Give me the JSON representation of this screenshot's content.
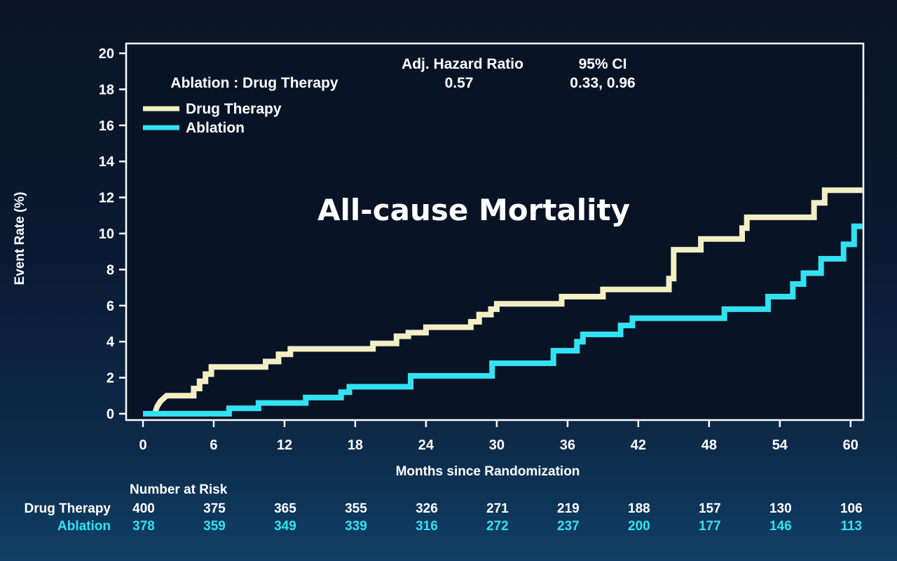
{
  "chart_data": {
    "type": "line",
    "subtype": "kaplan-meier step",
    "title": "All-cause Mortality",
    "xlabel": "Months since Randomization",
    "ylabel": "Event Rate (%)",
    "xlim": [
      0,
      61
    ],
    "ylim": [
      0,
      20
    ],
    "xticks": [
      0,
      6,
      12,
      18,
      24,
      30,
      36,
      42,
      48,
      54,
      60
    ],
    "yticks": [
      0,
      2,
      4,
      6,
      8,
      10,
      12,
      14,
      16,
      18,
      20
    ],
    "grid": false,
    "legend_position": "top-left",
    "stats_table": {
      "col_headers": [
        "Adj. Hazard Ratio",
        "95% CI"
      ],
      "row_label": "Ablation : Drug Therapy",
      "hazard_ratio": "0.57",
      "ci": "0.33, 0.96"
    },
    "series": [
      {
        "name": "Drug Therapy",
        "color": "#f3efc4",
        "points": [
          [
            0,
            0
          ],
          [
            1,
            0
          ],
          [
            1.2,
            0.4
          ],
          [
            1.5,
            0.7
          ],
          [
            2,
            1
          ],
          [
            4.3,
            1
          ],
          [
            4.3,
            1.4
          ],
          [
            4.8,
            1.4
          ],
          [
            4.8,
            1.8
          ],
          [
            5.3,
            1.8
          ],
          [
            5.3,
            2.2
          ],
          [
            5.8,
            2.2
          ],
          [
            5.8,
            2.6
          ],
          [
            10.4,
            2.6
          ],
          [
            10.4,
            2.9
          ],
          [
            11.5,
            2.9
          ],
          [
            11.5,
            3.3
          ],
          [
            12.5,
            3.3
          ],
          [
            12.5,
            3.6
          ],
          [
            19.5,
            3.6
          ],
          [
            19.5,
            3.9
          ],
          [
            21.5,
            3.9
          ],
          [
            21.5,
            4.3
          ],
          [
            22.5,
            4.3
          ],
          [
            22.5,
            4.5
          ],
          [
            24,
            4.5
          ],
          [
            24,
            4.8
          ],
          [
            27.8,
            4.8
          ],
          [
            27.8,
            5.1
          ],
          [
            28.5,
            5.1
          ],
          [
            28.5,
            5.5
          ],
          [
            29.5,
            5.5
          ],
          [
            29.5,
            5.8
          ],
          [
            30,
            5.8
          ],
          [
            30,
            6.1
          ],
          [
            35.5,
            6.1
          ],
          [
            35.5,
            6.5
          ],
          [
            39,
            6.5
          ],
          [
            39,
            6.9
          ],
          [
            44.6,
            6.9
          ],
          [
            44.6,
            7.5
          ],
          [
            45,
            7.5
          ],
          [
            45,
            9.1
          ],
          [
            47.3,
            9.1
          ],
          [
            47.3,
            9.7
          ],
          [
            50.8,
            9.7
          ],
          [
            50.8,
            10.3
          ],
          [
            51.2,
            10.3
          ],
          [
            51.2,
            10.9
          ],
          [
            56.9,
            10.9
          ],
          [
            56.9,
            11.7
          ],
          [
            57.8,
            11.7
          ],
          [
            57.8,
            12.4
          ],
          [
            61,
            12.4
          ]
        ]
      },
      {
        "name": "Ablation",
        "color": "#33e2f2",
        "points": [
          [
            0,
            0
          ],
          [
            7.3,
            0
          ],
          [
            7.3,
            0.3
          ],
          [
            9.8,
            0.3
          ],
          [
            9.8,
            0.6
          ],
          [
            13.8,
            0.6
          ],
          [
            13.8,
            0.9
          ],
          [
            16.8,
            0.9
          ],
          [
            16.8,
            1.2
          ],
          [
            17.5,
            1.2
          ],
          [
            17.5,
            1.5
          ],
          [
            22.7,
            1.5
          ],
          [
            22.7,
            2.1
          ],
          [
            29.6,
            2.1
          ],
          [
            29.6,
            2.8
          ],
          [
            34.8,
            2.8
          ],
          [
            34.8,
            3.5
          ],
          [
            36.8,
            3.5
          ],
          [
            36.8,
            4
          ],
          [
            37.3,
            4
          ],
          [
            37.3,
            4.4
          ],
          [
            40.5,
            4.4
          ],
          [
            40.5,
            4.9
          ],
          [
            41.5,
            4.9
          ],
          [
            41.5,
            5.3
          ],
          [
            49.3,
            5.3
          ],
          [
            49.3,
            5.8
          ],
          [
            53,
            5.8
          ],
          [
            53,
            6.5
          ],
          [
            55.1,
            6.5
          ],
          [
            55.1,
            7.2
          ],
          [
            56,
            7.2
          ],
          [
            56,
            7.8
          ],
          [
            57.5,
            7.8
          ],
          [
            57.5,
            8.6
          ],
          [
            59.4,
            8.6
          ],
          [
            59.4,
            9.4
          ],
          [
            60.3,
            9.4
          ],
          [
            60.3,
            10.4
          ],
          [
            61,
            10.4
          ]
        ]
      }
    ],
    "risk_table": {
      "header": "Number at Risk",
      "months": [
        0,
        6,
        12,
        18,
        24,
        30,
        36,
        42,
        48,
        54,
        60
      ],
      "rows": [
        {
          "label": "Drug Therapy",
          "color": "#ffffff",
          "values": [
            "400",
            "375",
            "365",
            "355",
            "326",
            "271",
            "219",
            "188",
            "157",
            "130",
            "106"
          ]
        },
        {
          "label": "Ablation",
          "color": "#33e2f2",
          "values": [
            "378",
            "359",
            "349",
            "339",
            "316",
            "272",
            "237",
            "200",
            "177",
            "146",
            "113"
          ]
        }
      ]
    }
  }
}
